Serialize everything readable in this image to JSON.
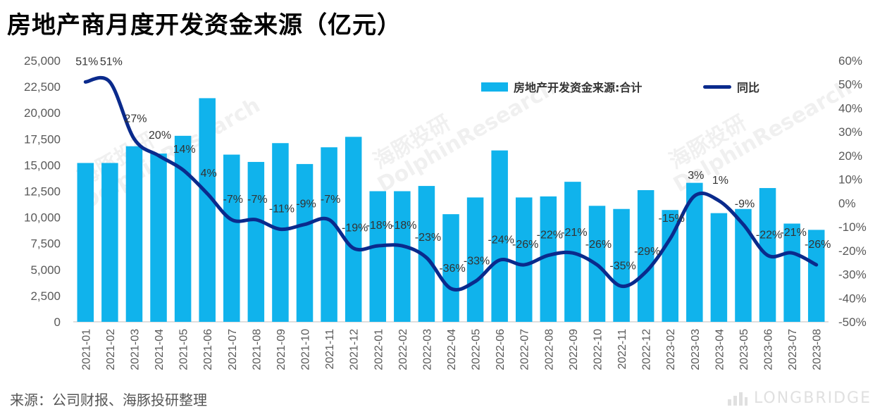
{
  "title": "房地产商月度开发资金来源（亿元）",
  "source": "来源：公司财报、海豚投研整理",
  "brand": {
    "name": "LONGBRIDGE",
    "logo_icon": "longbridge-logo-icon"
  },
  "watermark": {
    "cn": "海豚投研",
    "en": "DolphinResearch"
  },
  "colors": {
    "bar": "#10b3ec",
    "line": "#0a2a8c",
    "axis": "#bfbfbf",
    "text": "#595959"
  },
  "chart_data": {
    "type": "bar",
    "categories": [
      "2021-01",
      "2021-02",
      "2021-03",
      "2021-04",
      "2021-05",
      "2021-06",
      "2021-07",
      "2021-08",
      "2021-09",
      "2021-10",
      "2021-11",
      "2021-12",
      "2022-01",
      "2022-02",
      "2022-03",
      "2022-04",
      "2022-05",
      "2022-06",
      "2022-07",
      "2022-08",
      "2022-09",
      "2022-10",
      "2022-11",
      "2022-12",
      "2023-02",
      "2023-03",
      "2023-04",
      "2023-05",
      "2023-06",
      "2023-07",
      "2023-08"
    ],
    "series": [
      {
        "name": "房地产开发资金来源:合计",
        "type": "bar",
        "axis": "left",
        "values": [
          15200,
          15200,
          16800,
          16100,
          17800,
          21400,
          16000,
          15300,
          17100,
          15100,
          16700,
          17700,
          12500,
          12500,
          13000,
          10300,
          11900,
          16400,
          11900,
          12000,
          13400,
          11100,
          10800,
          12600,
          10700,
          13300,
          10400,
          10800,
          12800,
          9400,
          8800
        ]
      },
      {
        "name": "同比",
        "type": "line",
        "axis": "right",
        "values": [
          51,
          51,
          27,
          20,
          14,
          4,
          -7,
          -7,
          -11,
          -9,
          -7,
          -19,
          -18,
          -18,
          -23,
          -36,
          -33,
          -24,
          -26,
          -22,
          -21,
          -26,
          -35,
          -29,
          -15,
          3,
          1,
          -9,
          -22,
          -21,
          -26
        ],
        "labels": [
          "51%",
          "51%",
          "27%",
          "20%",
          "14%",
          "4%",
          "-7%",
          "-7%",
          "-11%",
          "-9%",
          "-7%",
          "-19%",
          "-18%",
          "-18%",
          "-23%",
          "-36%",
          "-33%",
          "-24%",
          "-26%",
          "-22%",
          "-21%",
          "-26%",
          "-35%",
          "-29%",
          "-15%",
          "3%",
          "1%",
          "-9%",
          "-22%",
          "-21%",
          "-26%"
        ]
      }
    ],
    "y_left": {
      "lim": [
        0,
        25000
      ],
      "ticks": [
        0,
        2500,
        5000,
        7500,
        10000,
        12500,
        15000,
        17500,
        20000,
        22500,
        25000
      ],
      "tick_labels": [
        "0",
        "2,500",
        "5,000",
        "7,500",
        "10,000",
        "12,500",
        "15,000",
        "17,500",
        "20,000",
        "22,500",
        "25,000"
      ]
    },
    "y_right": {
      "lim": [
        -50,
        60
      ],
      "ticks": [
        -50,
        -40,
        -30,
        -20,
        -10,
        0,
        10,
        20,
        30,
        40,
        50,
        60
      ],
      "tick_labels": [
        "-50%",
        "-40%",
        "-30%",
        "-20%",
        "-10%",
        "0%",
        "10%",
        "20%",
        "30%",
        "40%",
        "50%",
        "60%"
      ]
    },
    "legend": {
      "placement": "top-right",
      "items": [
        "房地产开发资金来源:合计",
        "同比"
      ]
    },
    "grid": false
  }
}
